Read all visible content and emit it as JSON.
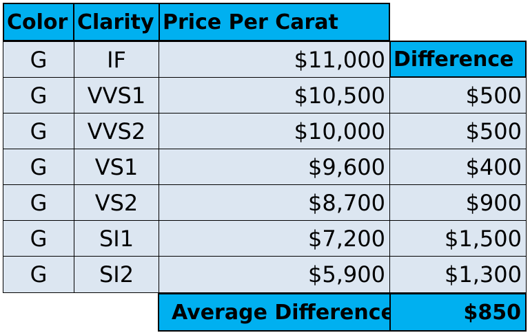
{
  "headers": {
    "color": "Color",
    "clarity": "Clarity",
    "price": "Price Per Carat",
    "difference": "Difference"
  },
  "rows": [
    {
      "color": "G",
      "clarity": "IF",
      "price": "$11,000",
      "difference": ""
    },
    {
      "color": "G",
      "clarity": "VVS1",
      "price": "$10,500",
      "difference": "$500"
    },
    {
      "color": "G",
      "clarity": "VVS2",
      "price": "$10,000",
      "difference": "$500"
    },
    {
      "color": "G",
      "clarity": "VS1",
      "price": "$9,600",
      "difference": "$400"
    },
    {
      "color": "G",
      "clarity": "VS2",
      "price": "$8,700",
      "difference": "$900"
    },
    {
      "color": "G",
      "clarity": "SI1",
      "price": "$7,200",
      "difference": "$1,500"
    },
    {
      "color": "G",
      "clarity": "SI2",
      "price": "$5,900",
      "difference": "$1,300"
    }
  ],
  "summary": {
    "label": "Average Difference",
    "value": "$850"
  },
  "colors": {
    "header_fill": "#00b0f0",
    "body_fill": "#dce6f1",
    "border": "#000000"
  }
}
